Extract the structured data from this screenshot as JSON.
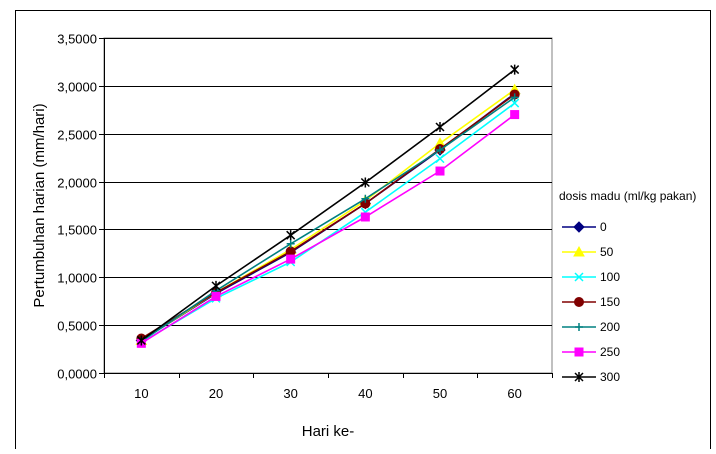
{
  "chart_data": {
    "type": "line",
    "xlabel": "Hari ke-",
    "ylabel": "Pertumbuhan harian (mm/hari)",
    "categories": [
      "10",
      "20",
      "30",
      "40",
      "50",
      "60"
    ],
    "ylim": [
      0,
      3.5
    ],
    "ytick_step": 0.5,
    "ytick_labels": [
      "0,0000",
      "0,5000",
      "1,0000",
      "1,5000",
      "2,0000",
      "2,5000",
      "3,0000",
      "3,5000"
    ],
    "grid": "horizontal",
    "legend_title": "dosis madu (ml/kg pakan)",
    "legend_position": "right",
    "series": [
      {
        "name": "0",
        "color": "#000080",
        "marker": "diamond",
        "values": [
          0.34,
          0.83,
          1.26,
          1.77,
          2.33,
          2.92
        ]
      },
      {
        "name": "50",
        "color": "#FFFF00",
        "marker": "triangle",
        "values": [
          0.34,
          0.84,
          1.29,
          1.8,
          2.4,
          2.96
        ]
      },
      {
        "name": "100",
        "color": "#00FFFF",
        "marker": "x",
        "values": [
          0.32,
          0.78,
          1.16,
          1.68,
          2.24,
          2.82
        ]
      },
      {
        "name": "150",
        "color": "#800000",
        "marker": "circle",
        "values": [
          0.36,
          0.84,
          1.27,
          1.77,
          2.34,
          2.91
        ]
      },
      {
        "name": "200",
        "color": "#008080",
        "marker": "plus",
        "values": [
          0.33,
          0.86,
          1.35,
          1.82,
          2.33,
          2.88
        ]
      },
      {
        "name": "250",
        "color": "#FF00FF",
        "marker": "square",
        "values": [
          0.31,
          0.8,
          1.19,
          1.63,
          2.11,
          2.7
        ]
      },
      {
        "name": "300",
        "color": "#000000",
        "marker": "asterisk",
        "values": [
          0.34,
          0.91,
          1.44,
          1.99,
          2.57,
          3.17
        ]
      }
    ]
  }
}
